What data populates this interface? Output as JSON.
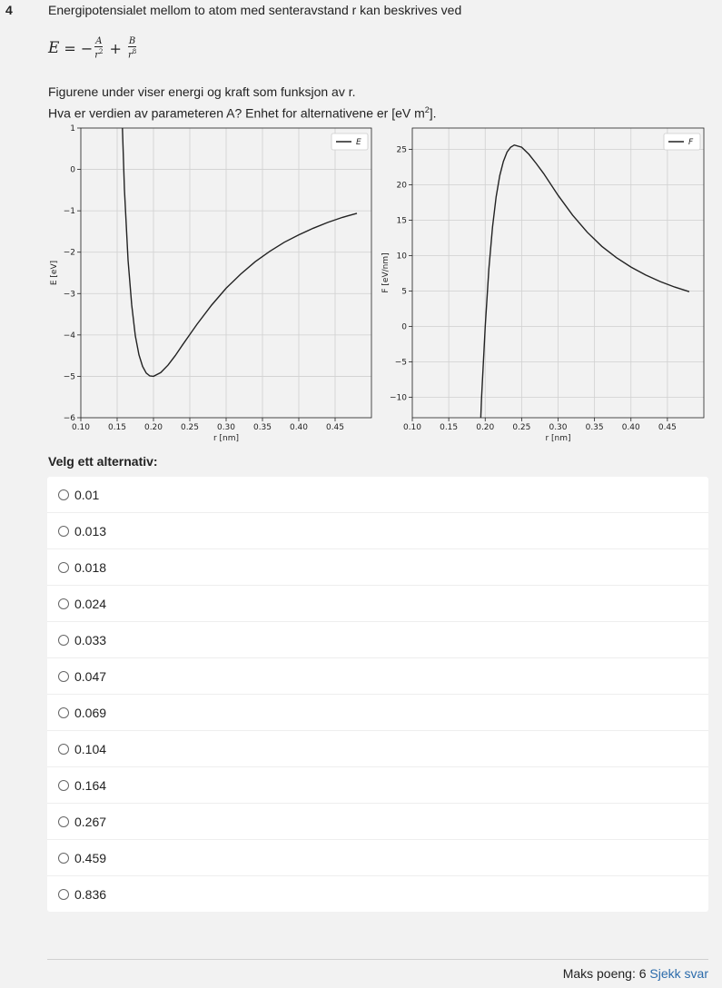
{
  "question": {
    "number": "4",
    "intro": "Energipotensialet mellom to atom med senteravstand r kan beskrives ved",
    "formula": {
      "lhs": "E",
      "eq": "=",
      "minus": "−",
      "A": "A",
      "r2_base": "r",
      "r2_exp": "2",
      "plus": "+",
      "B": "B",
      "r8_base": "r",
      "r8_exp": "8"
    },
    "line1": "Figurene under viser energi og kraft som funksjon av r.",
    "line2_pre": "Hva er verdien av parameteren A? Enhet for alternativene er [eV m",
    "line2_sup": "2",
    "line2_post": "]."
  },
  "chart_data": [
    {
      "type": "line",
      "xlabel": "r [nm]",
      "ylabel": "E [eV]",
      "xlim": [
        0.1,
        0.5
      ],
      "ylim": [
        -6,
        1
      ],
      "xticks": [
        "0.10",
        "0.15",
        "0.20",
        "0.25",
        "0.30",
        "0.35",
        "0.40",
        "0.45"
      ],
      "yticks": [
        "1",
        "0",
        "−1",
        "−2",
        "−3",
        "−4",
        "−5",
        "−6"
      ],
      "grid": true,
      "legend_position": "top-right",
      "series": [
        {
          "name": "E",
          "color": "#222222",
          "x": [
            0.1572,
            0.16,
            0.165,
            0.17,
            0.175,
            0.18,
            0.185,
            0.19,
            0.195,
            0.2,
            0.21,
            0.22,
            0.23,
            0.24,
            0.25,
            0.26,
            0.28,
            0.3,
            0.32,
            0.34,
            0.36,
            0.38,
            0.4,
            0.42,
            0.44,
            0.46,
            0.48
          ],
          "y": [
            1.0,
            -0.48,
            -2.19,
            -3.27,
            -4.02,
            -4.48,
            -4.76,
            -4.92,
            -4.99,
            -5.0,
            -4.91,
            -4.73,
            -4.5,
            -4.24,
            -3.99,
            -3.74,
            -3.28,
            -2.87,
            -2.53,
            -2.23,
            -1.98,
            -1.76,
            -1.58,
            -1.42,
            -1.28,
            -1.16,
            -1.06
          ]
        }
      ]
    },
    {
      "type": "line",
      "xlabel": "r [nm]",
      "ylabel": "F [eV/nm]",
      "xlim": [
        0.1,
        0.5
      ],
      "ylim": [
        -12.9,
        28
      ],
      "xticks": [
        "0.10",
        "0.15",
        "0.20",
        "0.25",
        "0.30",
        "0.35",
        "0.40",
        "0.45"
      ],
      "yticks": [
        "25",
        "20",
        "15",
        "10",
        "5",
        "0",
        "−5",
        "−10"
      ],
      "grid": true,
      "legend_position": "top-right",
      "series": [
        {
          "name": "F",
          "color": "#222222",
          "x": [
            0.1939,
            0.195,
            0.2,
            0.205,
            0.21,
            0.215,
            0.22,
            0.225,
            0.23,
            0.235,
            0.24,
            0.25,
            0.26,
            0.27,
            0.28,
            0.3,
            0.32,
            0.34,
            0.36,
            0.38,
            0.4,
            0.42,
            0.44,
            0.46,
            0.48
          ],
          "y": [
            -12.9,
            -10.2,
            0.0,
            8.12,
            14.0,
            18.3,
            21.3,
            23.3,
            24.6,
            25.3,
            25.6,
            25.3,
            24.3,
            23.0,
            21.6,
            18.5,
            15.7,
            13.3,
            11.3,
            9.71,
            8.37,
            7.25,
            6.33,
            5.55,
            4.9
          ]
        }
      ]
    }
  ],
  "prompt": "Velg ett alternativ:",
  "options": [
    {
      "label": "0.01"
    },
    {
      "label": "0.013"
    },
    {
      "label": "0.018"
    },
    {
      "label": "0.024"
    },
    {
      "label": "0.033"
    },
    {
      "label": "0.047"
    },
    {
      "label": "0.069"
    },
    {
      "label": "0.104"
    },
    {
      "label": "0.164"
    },
    {
      "label": "0.267"
    },
    {
      "label": "0.459"
    },
    {
      "label": "0.836"
    }
  ],
  "footer": {
    "max_points": "Maks poeng: 6",
    "check_answer": "Sjekk svar"
  }
}
